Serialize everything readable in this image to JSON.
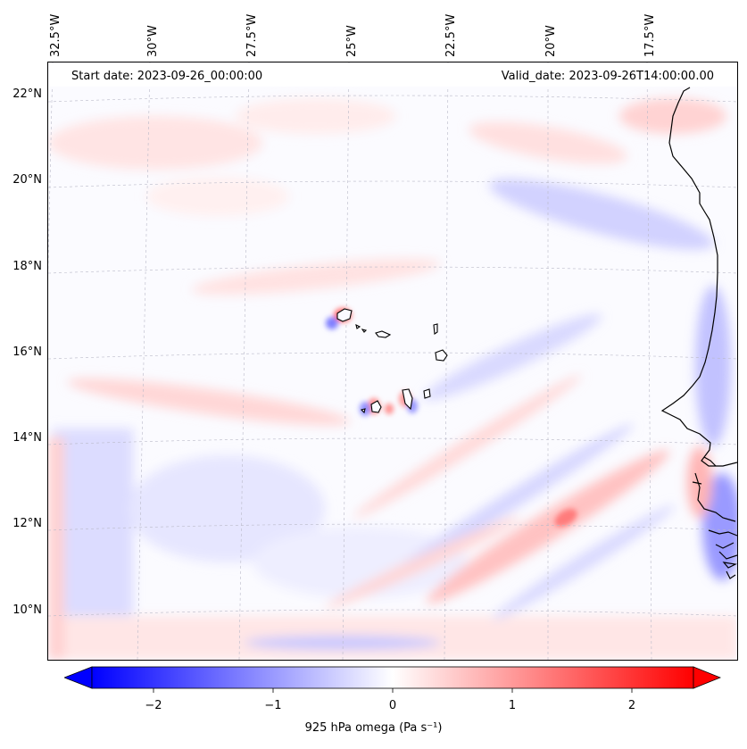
{
  "map": {
    "start_date": "Start date: 2023-09-26_00:00:00",
    "valid_date": "Valid_date: 2023-09-26T14:00:00.00",
    "lon_labels": [
      "32.5°W",
      "30°W",
      "27.5°W",
      "25°W",
      "22.5°W",
      "20°W",
      "17.5°W"
    ],
    "lat_labels": [
      "22°N",
      "20°N",
      "18°N",
      "16°N",
      "14°N",
      "12°N",
      "10°N"
    ],
    "features": [
      "Cape Verde islands",
      "West African coastline"
    ]
  },
  "colorbar": {
    "label": "925 hPa omega (Pa s⁻¹)",
    "ticks": [
      "−2",
      "−1",
      "0",
      "1",
      "2"
    ],
    "range": [
      -2.7,
      2.7
    ],
    "colormap": "bwr",
    "extend": "both"
  },
  "colors": {
    "negative": "#0000ff",
    "neutral": "#ffffff",
    "positive": "#ff0000",
    "coastline": "#000000"
  }
}
